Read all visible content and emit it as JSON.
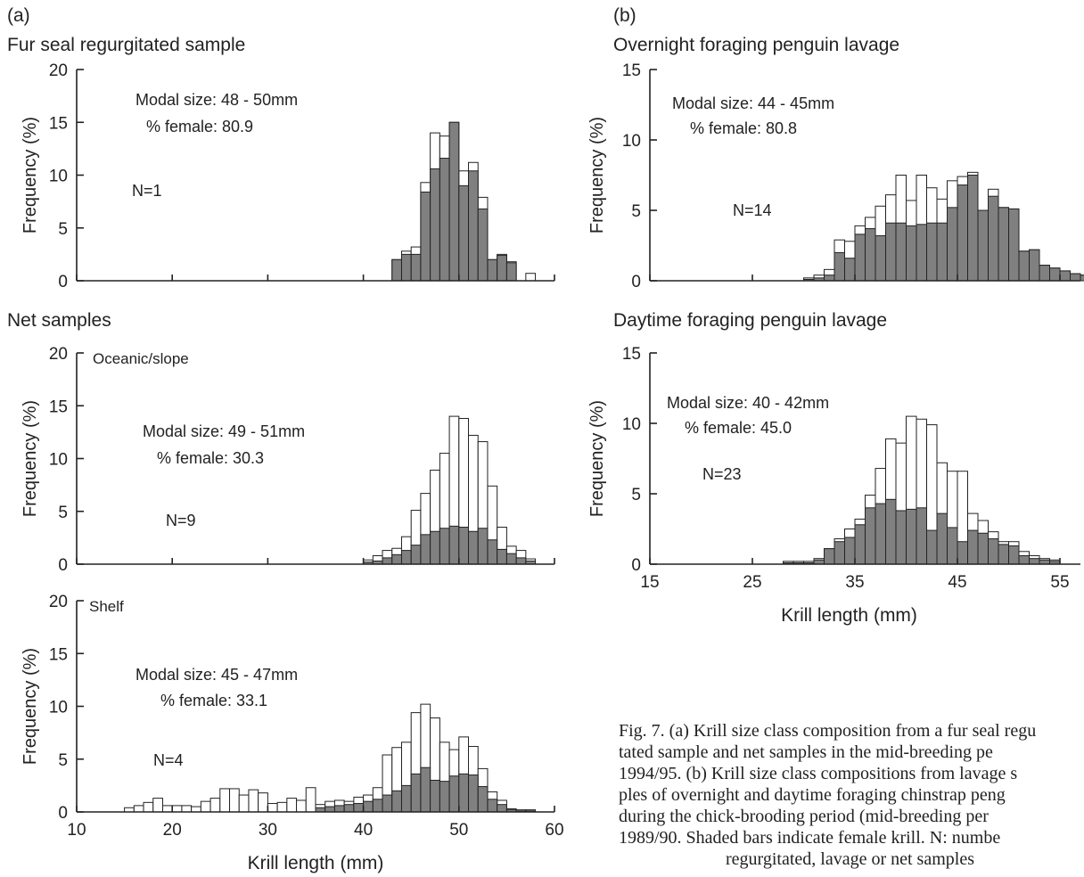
{
  "figure": {
    "panel_a_label": "(a)",
    "panel_b_label": "(b)",
    "net_samples_heading": "Net samples"
  },
  "caption_lines": [
    "Fig. 7. (a) Krill size class composition from a fur seal regu",
    "tated sample and net samples in the mid-breeding pe",
    "1994/95. (b) Krill size class compositions from lavage s",
    "ples of overnight and daytime foraging chinstrap peng",
    "during the chick-brooding period (mid-breeding per",
    "1989/90. Shaded bars indicate female krill. N: numbe",
    "regurgitated, lavage or net samples"
  ],
  "colors": {
    "female_fill": "#808080",
    "total_fill": "#ffffff",
    "stroke": "#222222"
  },
  "chart_data": [
    {
      "id": "fur-seal",
      "type": "bar",
      "title": "Fur seal regurgitated sample",
      "ylabel": "Frequency (%)",
      "xlabel": "",
      "xlim": [
        10,
        60
      ],
      "ylim": [
        0,
        20
      ],
      "yticks": [
        0,
        5,
        10,
        15,
        20
      ],
      "xticks": [
        10,
        20,
        30,
        40,
        50,
        60
      ],
      "show_xtick_labels": false,
      "annotations": [
        "Modal size: 48 - 50mm",
        "% female: 80.9",
        "N=1"
      ],
      "bin_start": 43,
      "bin_width": 1,
      "series": [
        {
          "name": "total",
          "values": [
            2,
            2.8,
            3.2,
            9.3,
            14,
            13.7,
            15,
            10.4,
            11.2,
            7.9,
            2,
            2.5,
            1.8,
            0,
            0.7
          ]
        },
        {
          "name": "female",
          "values": [
            2,
            2.5,
            2.5,
            8.4,
            10.6,
            11.6,
            15,
            9,
            10.4,
            6.8,
            2,
            2.4,
            1.7,
            0,
            0
          ]
        }
      ]
    },
    {
      "id": "oceanic",
      "type": "bar",
      "title": "Oceanic/slope",
      "ylabel": "Frequency (%)",
      "xlabel": "",
      "xlim": [
        10,
        60
      ],
      "ylim": [
        0,
        20
      ],
      "yticks": [
        0,
        5,
        10,
        15,
        20
      ],
      "xticks": [
        10,
        20,
        30,
        40,
        50,
        60
      ],
      "show_xtick_labels": false,
      "annotations": [
        "Modal size: 49 - 51mm",
        "% female: 30.3",
        "N=9"
      ],
      "bin_start": 40,
      "bin_width": 1,
      "series": [
        {
          "name": "total",
          "values": [
            0.4,
            0.8,
            1.3,
            1.5,
            2.6,
            5.1,
            6.7,
            8.9,
            10.5,
            14,
            13.8,
            12.2,
            11.6,
            7.4,
            3.5,
            1.7,
            1.3,
            0.5
          ]
        },
        {
          "name": "female",
          "values": [
            0.2,
            0.3,
            0.6,
            0.9,
            1.3,
            1.8,
            2.8,
            3.1,
            3.4,
            3.6,
            3.5,
            3.1,
            3.4,
            2.3,
            1.4,
            1,
            0.6,
            0.3
          ]
        }
      ]
    },
    {
      "id": "shelf",
      "type": "bar",
      "title": "Shelf",
      "ylabel": "Frequency (%)",
      "xlabel": "Krill length (mm)",
      "xlim": [
        10,
        60
      ],
      "ylim": [
        0,
        20
      ],
      "yticks": [
        0,
        5,
        10,
        15,
        20
      ],
      "xticks": [
        10,
        20,
        30,
        40,
        50,
        60
      ],
      "show_xtick_labels": true,
      "annotations": [
        "Modal size: 45 - 47mm",
        "% female: 33.1",
        "N=4"
      ],
      "bin_start": 15,
      "bin_width": 1,
      "series": [
        {
          "name": "total",
          "values": [
            0.4,
            0.6,
            0.9,
            1.3,
            0.6,
            0.6,
            0.6,
            0.5,
            1,
            1.3,
            2.2,
            2.2,
            1.6,
            2.1,
            1.8,
            0.8,
            0.9,
            1.3,
            1.1,
            2.3,
            0.7,
            1,
            1.1,
            1,
            1.4,
            1.6,
            2.3,
            5.4,
            6.1,
            6.6,
            9.4,
            10.2,
            8.9,
            6.6,
            5.9,
            7.1,
            6.2,
            4.1,
            1.9,
            1.1,
            0.3,
            0.2,
            0.2
          ]
        },
        {
          "name": "female",
          "values": [
            0,
            0,
            0,
            0,
            0,
            0,
            0,
            0,
            0,
            0,
            0,
            0,
            0,
            0,
            0,
            0,
            0,
            0,
            0,
            0,
            0.4,
            0.5,
            0.6,
            0.7,
            0.8,
            1,
            1.2,
            1.6,
            2,
            2.5,
            3.6,
            4.2,
            3,
            2.9,
            3.4,
            3.6,
            3.5,
            2.4,
            1.2,
            0.7,
            0.2,
            0.1,
            0.1
          ]
        }
      ]
    },
    {
      "id": "overnight",
      "type": "bar",
      "title": "Overnight foraging penguin lavage",
      "ylabel": "Frequency (%)",
      "xlabel": "",
      "xlim": [
        15,
        57
      ],
      "ylim": [
        0,
        15
      ],
      "yticks": [
        0,
        5,
        10,
        15
      ],
      "xticks": [
        15,
        25,
        35,
        45,
        55
      ],
      "show_xtick_labels": false,
      "annotations": [
        "Modal size: 44 - 45mm",
        "% female: 80.8",
        "N=14"
      ],
      "bin_start": 30,
      "bin_width": 1,
      "series": [
        {
          "name": "total",
          "values": [
            0.2,
            0.4,
            0.8,
            2.9,
            2.8,
            3.9,
            4.5,
            5.3,
            6.1,
            7.5,
            5.7,
            7.5,
            6.6,
            5.8,
            7.1,
            7.4,
            7.7,
            5,
            6.5,
            5.2,
            5.1,
            2.1,
            2.2,
            1.1,
            0.9,
            0.7,
            0.5,
            0.4
          ]
        },
        {
          "name": "female",
          "values": [
            0.1,
            0.2,
            0.4,
            2,
            1.6,
            3.3,
            3.7,
            3.2,
            4.1,
            4.1,
            3.9,
            4,
            4.1,
            4.1,
            5.2,
            6.8,
            7.5,
            5,
            6,
            5.2,
            5.1,
            2.1,
            2.2,
            1.1,
            0.9,
            0.7,
            0.5,
            0.4
          ]
        }
      ]
    },
    {
      "id": "daytime",
      "type": "bar",
      "title": "Daytime foraging penguin lavage",
      "ylabel": "Frequency (%)",
      "xlabel": "Krill length (mm)",
      "xlim": [
        15,
        57
      ],
      "ylim": [
        0,
        15
      ],
      "yticks": [
        0,
        5,
        10,
        15
      ],
      "xticks": [
        15,
        25,
        35,
        45,
        55
      ],
      "show_xtick_labels": true,
      "annotations": [
        "Modal size: 40 - 42mm",
        "% female: 45.0",
        "N=23"
      ],
      "bin_start": 28,
      "bin_width": 1,
      "series": [
        {
          "name": "total",
          "values": [
            0.2,
            0.2,
            0.2,
            0.4,
            1.1,
            1.8,
            2.5,
            3.2,
            4.9,
            6.8,
            8.9,
            8.6,
            10.5,
            10.3,
            9.9,
            7.2,
            6.6,
            6.6,
            3.6,
            3.1,
            2.3,
            1.6,
            1.6,
            0.9,
            0.6,
            0.4,
            0.3
          ]
        },
        {
          "name": "female",
          "values": [
            0.1,
            0.1,
            0.1,
            0.3,
            1.1,
            1.6,
            1.9,
            2.8,
            4,
            4.3,
            4.6,
            3.8,
            3.9,
            4,
            2.4,
            3.6,
            2.6,
            1.6,
            2.4,
            2.2,
            1.8,
            1.4,
            1.3,
            0.6,
            0.4,
            0.3,
            0.2
          ]
        }
      ]
    }
  ]
}
